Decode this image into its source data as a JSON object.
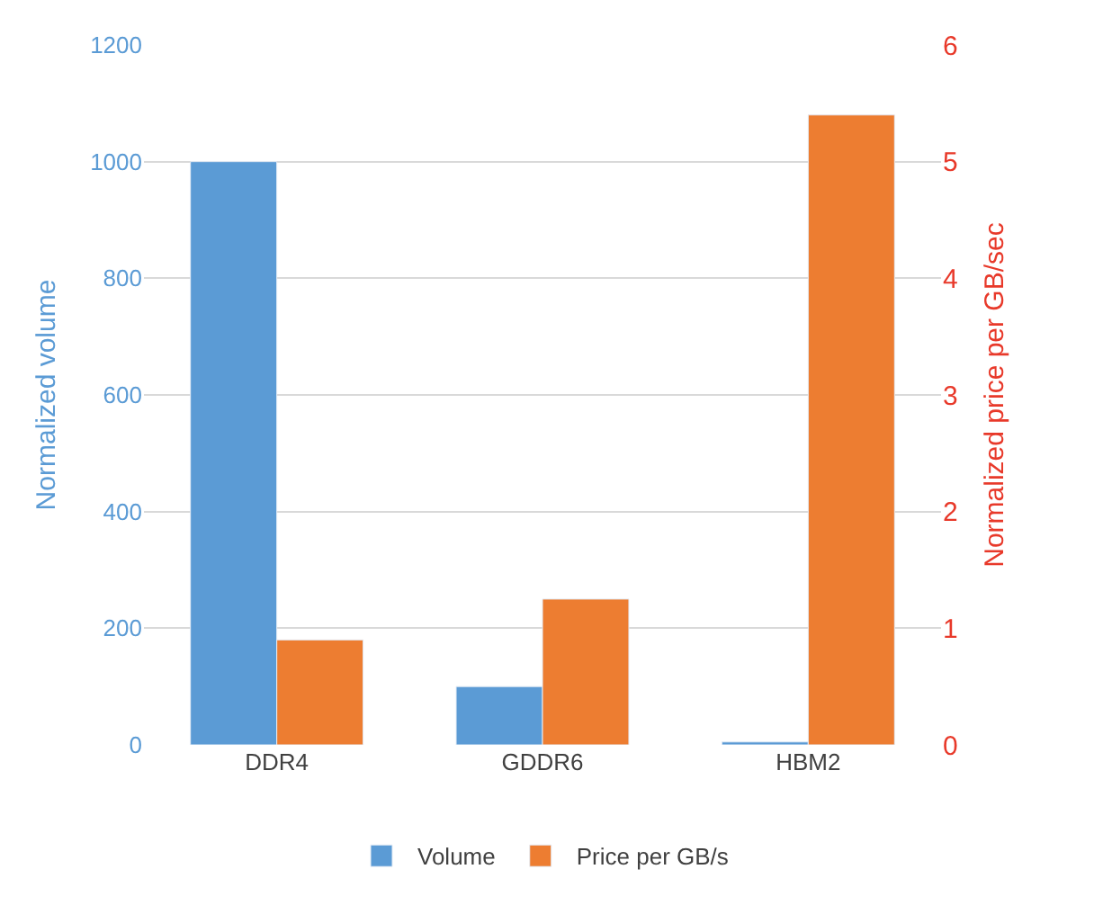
{
  "chart_data": {
    "type": "bar",
    "categories": [
      "DDR4",
      "GDDR6",
      "HBM2"
    ],
    "series": [
      {
        "name": "Volume",
        "color": "#5b9bd5",
        "values": [
          1000,
          100,
          5
        ]
      },
      {
        "name": "Price per GB/s",
        "color": "#ed7d31",
        "values": [
          0.9,
          1.25,
          5.4
        ],
        "axis": "y2"
      }
    ],
    "ylabel": "Normalized volume",
    "y2label": "Normalized price per GB/sec",
    "ylim": [
      0,
      1200
    ],
    "yticks": [
      0,
      200,
      400,
      600,
      800,
      1000,
      1200
    ],
    "y2lim": [
      0,
      6
    ],
    "y2ticks": [
      0,
      1,
      2,
      3,
      4,
      5,
      6
    ],
    "grid": "y",
    "legend": "bottom"
  }
}
